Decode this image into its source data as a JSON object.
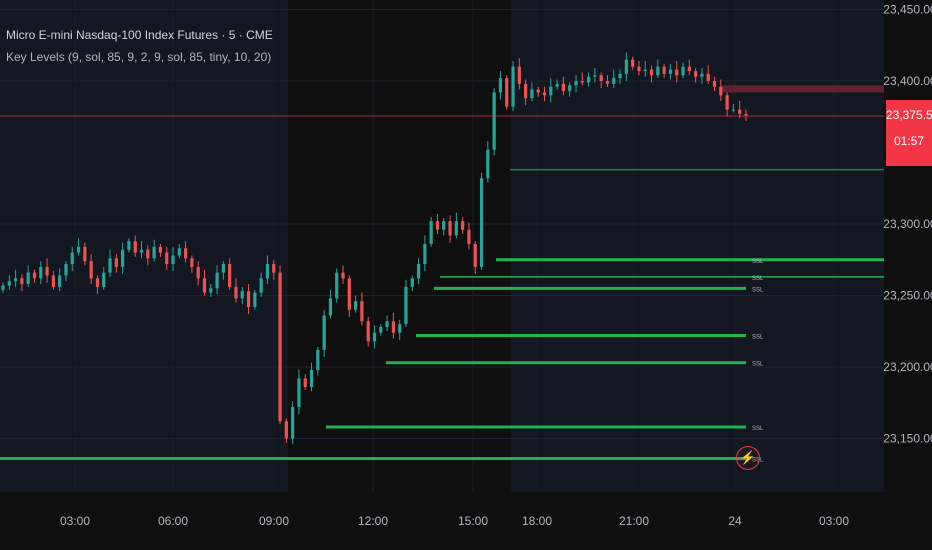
{
  "header": {
    "symbol_line": "Micro E-mini Nasdaq-100 Index Futures · 5 · CME",
    "indicator_line": "Key Levels (9, sol, 85, 9, 2, 9, sol, 85, tiny, 10, 20)"
  },
  "last_price": {
    "value": "23,375.50",
    "countdown": "01:57",
    "color": "#f23645"
  },
  "colors": {
    "up": "#26a69a",
    "down": "#ef5350",
    "level": "#22b24c",
    "bg": "#0f0f0f",
    "session_bg": "#131722"
  },
  "icons": {
    "alert": "lightning-bolt-icon"
  },
  "chart_data": {
    "type": "candlestick",
    "y_axis": {
      "ticks": [
        "23,450.00",
        "23,400.00",
        "23,300.00",
        "23,250.00",
        "23,200.00",
        "23,150.00"
      ]
    },
    "x_axis": {
      "ticks": [
        "03:00",
        "06:00",
        "09:00",
        "12:00",
        "15:00",
        "18:00",
        "21:00",
        "24",
        "03:00"
      ]
    },
    "ylim": [
      23125,
      23455
    ],
    "levels": [
      {
        "price": 23275,
        "label": "SSL",
        "extends": true
      },
      {
        "price": 23263,
        "label": "SSL",
        "extends": true
      },
      {
        "price": 23338,
        "label": "",
        "extends": true
      },
      {
        "price": 23255,
        "label": "SSL",
        "extends": false
      },
      {
        "price": 23222,
        "label": "SSL",
        "extends": false
      },
      {
        "price": 23203,
        "label": "SSL",
        "extends": false
      },
      {
        "price": 23158,
        "label": "SSL",
        "extends": false
      },
      {
        "price": 23136,
        "label": "SSL",
        "extends": false
      }
    ],
    "series": [
      {
        "close": [
          23257,
          23260,
          23262,
          23258,
          23266,
          23262,
          23270,
          23264,
          23256,
          23264,
          23272,
          23280,
          23284,
          23274,
          23262,
          23256,
          23266,
          23276,
          23270,
          23282,
          23288,
          23280,
          23282,
          23276,
          23284,
          23280,
          23272,
          23278,
          23283,
          23276,
          23270,
          23262,
          23252,
          23255,
          23266,
          23272,
          23256,
          23248,
          23253,
          23242,
          23252,
          23262,
          23272,
          23266,
          23162,
          23150,
          23172,
          23192,
          23186,
          23198,
          23212,
          23236,
          23248,
          23266,
          23262,
          23240,
          23246,
          23232,
          23218,
          23224,
          23228,
          23232,
          23224,
          23230,
          23256,
          23262,
          23272,
          23286,
          23302,
          23296,
          23302,
          23292,
          23302,
          23296,
          23286,
          23270,
          23332,
          23352,
          23392,
          23402,
          23382,
          23410,
          23398,
          23388,
          23394,
          23392,
          23390,
          23396,
          23398,
          23393,
          23397,
          23400,
          23399,
          23403,
          23404,
          23400,
          23398,
          23402,
          23405,
          23415,
          23410,
          23407,
          23408,
          23404,
          23410,
          23405,
          23408,
          23404,
          23410,
          23407,
          23403,
          23405,
          23400,
          23396,
          23390,
          23380,
          23380,
          23377,
          23376
        ]
      }
    ]
  }
}
